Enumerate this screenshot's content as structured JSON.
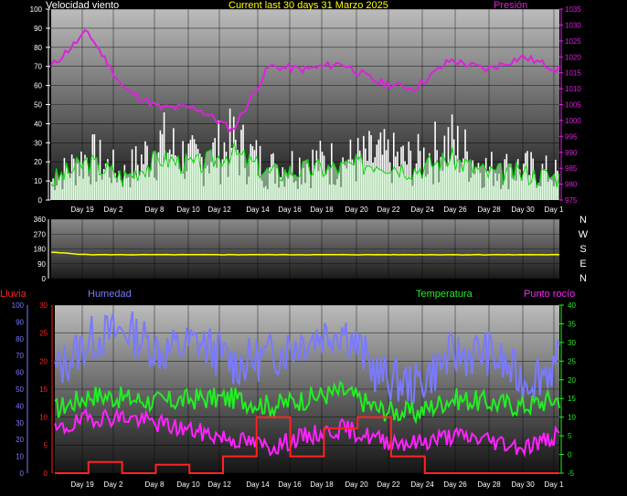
{
  "header": {
    "wind_speed_label": "Velocidad viento",
    "title": "Current last 30 days 31 Marzo 2025",
    "pressure_label": "Presión"
  },
  "lower_header": {
    "rain_label": "Lluvia",
    "humidity_label": "Humedad",
    "temperature_label": "Temperatura",
    "dewpoint_label": "Punto rocío"
  },
  "compass": [
    "N",
    "W",
    "S",
    "E",
    "N"
  ],
  "x_ticks": [
    "Day 19",
    "Day 2",
    "Day 8",
    "Day 10",
    "Day 12",
    "Day 14",
    "Day 16",
    "Day 18",
    "Day 20",
    "Day 22",
    "Day 24",
    "Day 26",
    "Day 28",
    "Day 30",
    "Day 1"
  ],
  "colors": {
    "wind_speed": "#ffffff",
    "wind_avg": "#00dd00",
    "pressure": "#dd22dd",
    "direction": "#ffff00",
    "humidity": "#7a7aff",
    "temperature": "#22ee22",
    "dewpoint": "#ff22ff",
    "rain": "#ff2222"
  },
  "chart_data": [
    {
      "type": "area",
      "title": "Current last 30 days 31 Marzo 2025",
      "x": [
        "Day 19",
        "Day 2",
        "Day 8",
        "Day 10",
        "Day 12",
        "Day 14",
        "Day 16",
        "Day 18",
        "Day 20",
        "Day 22",
        "Day 24",
        "Day 26",
        "Day 28",
        "Day 30",
        "Day 1"
      ],
      "y_left": {
        "label": "Velocidad viento",
        "ylim": [
          0,
          100
        ],
        "ticks": [
          0,
          10,
          20,
          30,
          40,
          50,
          60,
          70,
          80,
          90,
          100
        ]
      },
      "y_right": {
        "label": "Presión",
        "ylim": [
          975,
          1035
        ],
        "ticks": [
          975,
          980,
          985,
          990,
          995,
          1000,
          1005,
          1010,
          1015,
          1020,
          1025,
          1030,
          1035
        ]
      },
      "series": [
        {
          "name": "Velocidad viento",
          "axis": "left",
          "values": [
            15,
            35,
            20,
            45,
            30,
            45,
            25,
            30,
            30,
            35,
            30,
            45,
            25,
            25,
            20
          ]
        },
        {
          "name": "",
          "axis": "left",
          "values": [
            10,
            20,
            12,
            22,
            18,
            25,
            14,
            16,
            17,
            20,
            16,
            22,
            14,
            14,
            12
          ]
        },
        {
          "name": "Presión",
          "axis": "right",
          "values": [
            1017,
            1028,
            1010,
            1004,
            1004,
            997,
            1017,
            1016,
            1018,
            1012,
            1010,
            1019,
            1016,
            1020,
            1016
          ]
        }
      ]
    },
    {
      "type": "line",
      "x": [
        "Day 19",
        "Day 2",
        "Day 8",
        "Day 10",
        "Day 12",
        "Day 14",
        "Day 16",
        "Day 18",
        "Day 20",
        "Day 22",
        "Day 24",
        "Day 26",
        "Day 28",
        "Day 30",
        "Day 1"
      ],
      "ylim": [
        0,
        360
      ],
      "yticks": [
        0,
        90,
        180,
        270,
        360
      ],
      "series": [
        {
          "name": "",
          "values": [
            160,
            145,
            145,
            145,
            145,
            145,
            145,
            145,
            145,
            145,
            145,
            145,
            145,
            145,
            145
          ]
        }
      ]
    },
    {
      "type": "line",
      "x": [
        "Day 19",
        "Day 2",
        "Day 8",
        "Day 10",
        "Day 12",
        "Day 14",
        "Day 16",
        "Day 18",
        "Day 20",
        "Day 22",
        "Day 24",
        "Day 26",
        "Day 28",
        "Day 30",
        "Day 1"
      ],
      "y_left_rain": {
        "label": "Lluvia",
        "ylim": [
          0,
          30
        ],
        "ticks": [
          0,
          5,
          10,
          15,
          20,
          25,
          30
        ]
      },
      "y_left_humidity": {
        "label": "Humedad",
        "ylim": [
          0,
          100
        ],
        "ticks": [
          0,
          10,
          20,
          30,
          40,
          50,
          60,
          70,
          80,
          90,
          100
        ]
      },
      "y_right": {
        "label": "Temperatura",
        "ylim": [
          -5,
          40
        ],
        "ticks": [
          -5,
          0,
          5,
          10,
          15,
          20,
          25,
          30,
          35,
          40
        ]
      },
      "series": [
        {
          "name": "Humedad",
          "axis": "humidity",
          "values": [
            60,
            80,
            85,
            72,
            78,
            65,
            70,
            80,
            86,
            58,
            52,
            70,
            72,
            55,
            65
          ]
        },
        {
          "name": "Temperatura",
          "axis": "right",
          "values": [
            12,
            16,
            15,
            14,
            15,
            15,
            13,
            15,
            17,
            12,
            11,
            15,
            14,
            13,
            15
          ]
        },
        {
          "name": "Punto rocío",
          "axis": "right",
          "values": [
            6,
            10,
            10,
            8,
            6,
            4,
            2,
            5,
            7,
            4,
            3,
            5,
            4,
            2,
            5
          ]
        },
        {
          "name": "Lluvia",
          "axis": "rain",
          "values": [
            0,
            2,
            0,
            1.5,
            0,
            3,
            10,
            3,
            8,
            10,
            3,
            0,
            0,
            0,
            0
          ]
        }
      ]
    }
  ]
}
